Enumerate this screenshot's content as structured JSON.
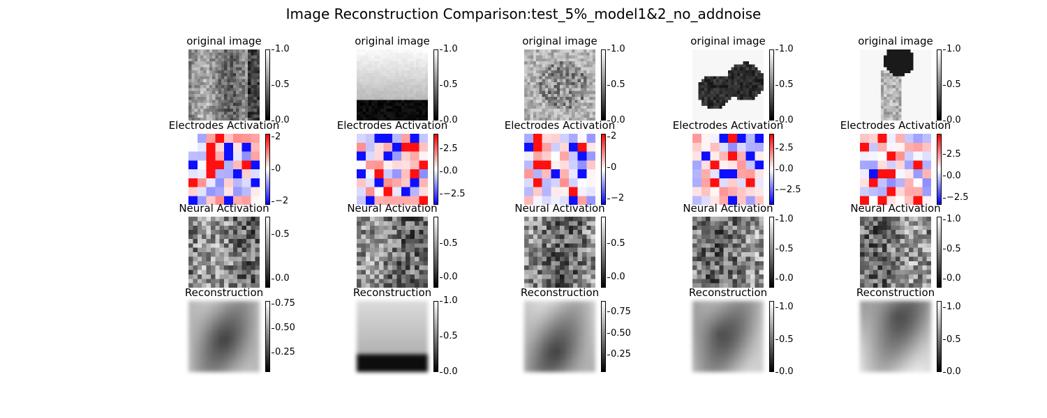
{
  "title": "Image Reconstruction Comparison:test_5%_model1&2_no_addnoise",
  "chart_data": {
    "type": "heatmap",
    "title": "Image Reconstruction Comparison:test_5%_model1&2_no_addnoise",
    "rows": [
      {
        "panel_title": "original image",
        "colormap": "gray",
        "grid": 24,
        "colorbars": [
          {
            "range": [
              0.0,
              1.0
            ],
            "ticks": [
              "0.0",
              "0.5",
              "1.0"
            ]
          },
          {
            "range": [
              0.0,
              1.0
            ],
            "ticks": [
              "0.0",
              "0.5",
              "1.0"
            ]
          },
          {
            "range": [
              0.0,
              1.0
            ],
            "ticks": [
              "0.0",
              "0.5",
              "1.0"
            ]
          },
          {
            "range": [
              0.0,
              1.0
            ],
            "ticks": [
              "0.0",
              "0.5",
              "1.0"
            ]
          },
          {
            "range": [
              0.0,
              1.0
            ],
            "ticks": [
              "0.0",
              "0.5",
              "1.0"
            ]
          }
        ]
      },
      {
        "panel_title": "Electrodes Activation",
        "colormap": "bwr",
        "grid": 8,
        "colorbars": [
          {
            "range": [
              -2.2,
              2.2
            ],
            "ticks": [
              "−2",
              "0",
              "2"
            ]
          },
          {
            "range": [
              -3.7,
              4.2
            ],
            "ticks": [
              "−2.5",
              "0.0",
              "2.5"
            ]
          },
          {
            "range": [
              -2.4,
              2.2
            ],
            "ticks": [
              "−2",
              "0",
              "2"
            ]
          },
          {
            "range": [
              -4.3,
              4.3
            ],
            "ticks": [
              "−2.5",
              "0.0",
              "2.5"
            ]
          },
          {
            "range": [
              -3.3,
              4.9
            ],
            "ticks": [
              "−2.5",
              "0.0",
              "2.5"
            ]
          }
        ]
      },
      {
        "panel_title": "Neural Activation",
        "colormap": "gray",
        "grid": 16,
        "colorbars": [
          {
            "range": [
              -0.1,
              0.7
            ],
            "ticks": [
              "0.0",
              "0.5"
            ]
          },
          {
            "range": [
              -0.15,
              0.9
            ],
            "ticks": [
              "0.0",
              "0.5"
            ]
          },
          {
            "range": [
              -0.15,
              0.9
            ],
            "ticks": [
              "0.0",
              "0.5"
            ]
          },
          {
            "range": [
              -0.15,
              1.05
            ],
            "ticks": [
              "0.0",
              "0.5",
              "1.0"
            ]
          },
          {
            "range": [
              -0.15,
              1.05
            ],
            "ticks": [
              "0.0",
              "0.5",
              "1.0"
            ]
          }
        ]
      },
      {
        "panel_title": "Reconstruction",
        "colormap": "gray",
        "grid": 12,
        "colorbars": [
          {
            "range": [
              0.05,
              0.78
            ],
            "ticks": [
              "0.25",
              "0.50",
              "0.75"
            ]
          },
          {
            "range": [
              0.0,
              1.0
            ],
            "ticks": [
              "0.0",
              "0.5",
              "1.0"
            ]
          },
          {
            "range": [
              0.05,
              0.88
            ],
            "ticks": [
              "0.25",
              "0.50",
              "0.75"
            ]
          },
          {
            "range": [
              0.0,
              1.1
            ],
            "ticks": [
              "0.0",
              "0.5",
              "1.0"
            ]
          },
          {
            "range": [
              0.0,
              1.1
            ],
            "ticks": [
              "0.0",
              "0.5",
              "1.0"
            ]
          }
        ]
      }
    ]
  }
}
